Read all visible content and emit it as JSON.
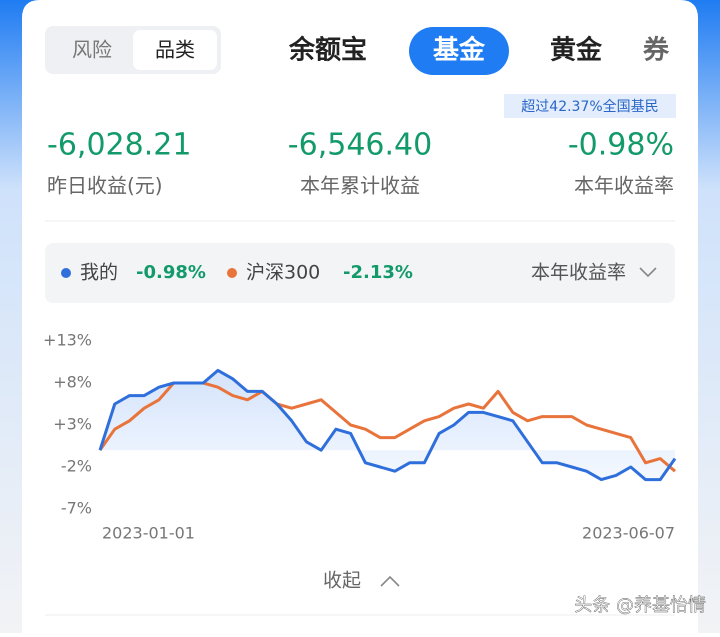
{
  "toggle": [
    "风险",
    "品类"
  ],
  "tabs": [
    "余额宝",
    "基金",
    "黄金",
    "券"
  ],
  "badge": "超过42.37%全国基民",
  "stats": [
    {
      "value": "-6,028.21",
      "label": "昨日收益(元)"
    },
    {
      "value": "-6,546.40",
      "label": "本年累计收益"
    },
    {
      "value": "-0.98%",
      "label": "本年收益率"
    }
  ],
  "legend_values": [
    "-0.98%",
    "-2.13%"
  ],
  "period": "本年收益率",
  "collapse": "收起",
  "watermark": "头条 @养基怡情",
  "chart_data": {
    "type": "line",
    "categories": [
      "2023-01-01",
      null,
      null,
      null,
      null,
      null,
      null,
      null,
      null,
      null,
      null,
      null,
      null,
      null,
      null,
      null,
      null,
      null,
      null,
      null,
      null,
      null,
      null,
      null,
      null,
      null,
      null,
      null,
      null,
      null,
      null,
      null,
      null,
      null,
      null,
      null,
      null,
      null,
      null,
      "2023-06-07"
    ],
    "series": [
      {
        "name": "我的",
        "color": "#2f6fdc",
        "values": [
          0,
          5.5,
          6.5,
          6.5,
          7.5,
          8,
          8,
          8,
          9.5,
          8.5,
          7,
          7,
          5.5,
          3.5,
          1,
          0,
          2.5,
          2,
          -1.5,
          -2,
          -2.5,
          -1.5,
          -1.5,
          2,
          3,
          4.5,
          4.5,
          4,
          3.5,
          1,
          -1.5,
          -1.5,
          -2,
          -2.5,
          -3.5,
          -3,
          -2,
          -3.5,
          -3.5,
          -1
        ]
      },
      {
        "name": "沪深300",
        "color": "#e8743b",
        "values": [
          0,
          2.5,
          3.5,
          5,
          6,
          8,
          8,
          8,
          7.5,
          6.5,
          6,
          7,
          5.5,
          5,
          5.5,
          6,
          4.5,
          3,
          2.5,
          1.5,
          1.5,
          2.5,
          3.5,
          4,
          5,
          5.5,
          5,
          7,
          4.5,
          3.5,
          4,
          4,
          4,
          3,
          2.5,
          2,
          1.5,
          -1.5,
          -1,
          -2.5
        ]
      }
    ],
    "ylim": [
      -7,
      13
    ],
    "yticks": [
      {
        "value": 13,
        "label": "+13%"
      },
      {
        "value": 8,
        "label": "+8%"
      },
      {
        "value": 3,
        "label": "+3%"
      },
      {
        "value": -2,
        "label": "-2%"
      },
      {
        "value": -7,
        "label": "-7%"
      }
    ],
    "grid": false
  }
}
